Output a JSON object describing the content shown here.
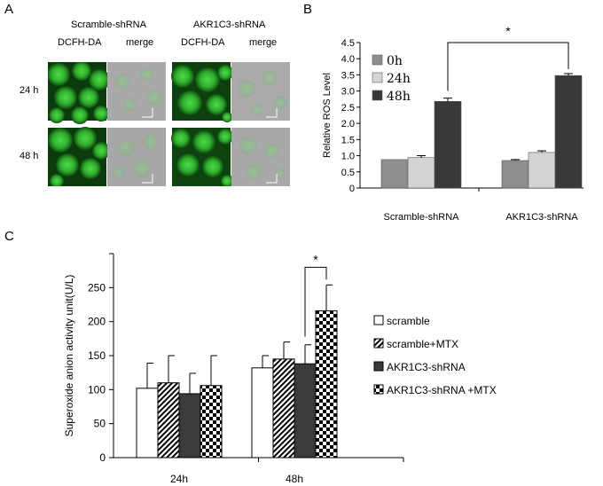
{
  "panel_letters": {
    "a": "A",
    "b": "B",
    "c": "C"
  },
  "panel_a": {
    "group_labels": [
      "Scramble-shRNA",
      "AKR1C3-shRNA"
    ],
    "column_labels": [
      "DCFH-DA",
      "merge",
      "DCFH-DA",
      "merge"
    ],
    "row_labels": [
      "24 h",
      "48 h"
    ]
  },
  "chart_data": [
    {
      "type": "bar",
      "panel": "B",
      "categories": [
        "Scramble-shRNA",
        "AKR1C3-shRNA"
      ],
      "ylabel": "Relative ROS Level",
      "xlabel": "",
      "ylim": [
        0,
        4.5
      ],
      "yticks": [
        "0",
        "0.5",
        "1.0",
        "1.5",
        "2.0",
        "2.5",
        "3.0",
        "3.5",
        "4.0",
        "4.5"
      ],
      "legend_position": "top-left",
      "series": [
        {
          "name": "0h",
          "values": [
            0.88,
            0.85
          ],
          "errors": [
            0.0,
            0.03
          ],
          "color": "#8e8e8e"
        },
        {
          "name": "24h",
          "values": [
            0.94,
            1.1
          ],
          "errors": [
            0.06,
            0.05
          ],
          "color": "#d4d4d4"
        },
        {
          "name": "48h",
          "values": [
            2.68,
            3.48
          ],
          "errors": [
            0.1,
            0.06
          ],
          "color": "#383838"
        }
      ],
      "annotation": "*"
    },
    {
      "type": "bar",
      "panel": "C",
      "categories": [
        "24h",
        "48h"
      ],
      "ylabel": "Superoxide anion activity unit(U/L)",
      "xlabel": "",
      "ylim": [
        0,
        300
      ],
      "yticks": [
        "0",
        "50",
        "100",
        "150",
        "200",
        "250"
      ],
      "legend_position": "right",
      "series": [
        {
          "name": "scramble",
          "values": [
            102,
            132
          ],
          "errors": [
            37,
            18
          ],
          "pattern": "white"
        },
        {
          "name": "scramble+MTX",
          "values": [
            110,
            145
          ],
          "errors": [
            40,
            25
          ],
          "pattern": "diagonal"
        },
        {
          "name": "AKR1C3-shRNA",
          "values": [
            94,
            138
          ],
          "errors": [
            30,
            28
          ],
          "pattern": "dark"
        },
        {
          "name": "AKR1C3-shRNA +MTX",
          "values": [
            106,
            216
          ],
          "errors": [
            44,
            38
          ],
          "pattern": "checker"
        }
      ],
      "annotation": "*"
    }
  ]
}
